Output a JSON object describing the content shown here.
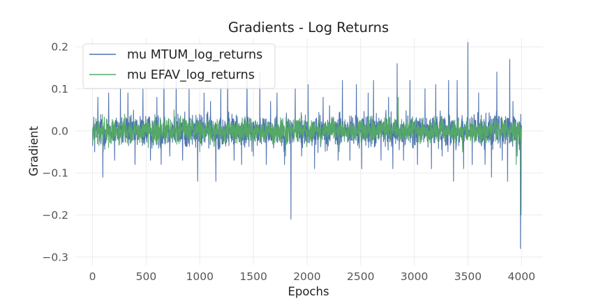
{
  "chart_data": {
    "type": "line",
    "title": "Gradients - Log Returns",
    "xlabel": "Epochs",
    "ylabel": "Gradient",
    "xlim": [
      -160,
      4200
    ],
    "ylim": [
      -0.32,
      0.22
    ],
    "xticks": [
      0,
      500,
      1000,
      1500,
      2000,
      2500,
      3000,
      3500,
      4000
    ],
    "yticks": [
      0.2,
      0.1,
      0.0,
      -0.1,
      -0.2,
      -0.3
    ],
    "ytick_labels": [
      "0.2",
      "0.1",
      "0.0",
      "−0.1",
      "−0.2",
      "−0.3"
    ],
    "grid": true,
    "legend_position": "top-left",
    "x_range": [
      0,
      4000
    ],
    "series": [
      {
        "name": "mu MTUM_log_returns",
        "color": "#4c72b0",
        "noise_amplitude": 0.035,
        "spikes": [
          [
            20,
            -0.05
          ],
          [
            50,
            0.08
          ],
          [
            95,
            -0.11
          ],
          [
            150,
            0.09
          ],
          [
            205,
            -0.07
          ],
          [
            260,
            0.1
          ],
          [
            330,
            0.09
          ],
          [
            395,
            -0.08
          ],
          [
            470,
            0.1
          ],
          [
            540,
            -0.07
          ],
          [
            600,
            0.08
          ],
          [
            640,
            -0.08
          ],
          [
            665,
            0.17
          ],
          [
            720,
            -0.06
          ],
          [
            780,
            0.12
          ],
          [
            840,
            -0.07
          ],
          [
            900,
            0.1
          ],
          [
            980,
            -0.12
          ],
          [
            1040,
            0.09
          ],
          [
            1100,
            0.07
          ],
          [
            1150,
            -0.12
          ],
          [
            1195,
            0.1
          ],
          [
            1260,
            0.14
          ],
          [
            1320,
            -0.07
          ],
          [
            1390,
            -0.08
          ],
          [
            1440,
            0.13
          ],
          [
            1500,
            -0.06
          ],
          [
            1560,
            0.14
          ],
          [
            1620,
            -0.08
          ],
          [
            1660,
            0.07
          ],
          [
            1720,
            0.09
          ],
          [
            1790,
            -0.08
          ],
          [
            1850,
            -0.21
          ],
          [
            1890,
            0.1
          ],
          [
            1950,
            -0.06
          ],
          [
            2010,
            0.11
          ],
          [
            2070,
            -0.09
          ],
          [
            2150,
            0.08
          ],
          [
            2210,
            0.06
          ],
          [
            2290,
            -0.07
          ],
          [
            2330,
            0.12
          ],
          [
            2400,
            -0.07
          ],
          [
            2460,
            0.11
          ],
          [
            2510,
            -0.09
          ],
          [
            2570,
            0.09
          ],
          [
            2620,
            0.12
          ],
          [
            2690,
            -0.07
          ],
          [
            2760,
            0.08
          ],
          [
            2800,
            -0.09
          ],
          [
            2840,
            0.16
          ],
          [
            2900,
            -0.07
          ],
          [
            2960,
            0.12
          ],
          [
            3030,
            -0.08
          ],
          [
            3100,
            0.1
          ],
          [
            3160,
            -0.09
          ],
          [
            3200,
            0.11
          ],
          [
            3260,
            -0.06
          ],
          [
            3320,
            0.12
          ],
          [
            3365,
            -0.12
          ],
          [
            3400,
            0.12
          ],
          [
            3460,
            -0.09
          ],
          [
            3500,
            0.21
          ],
          [
            3540,
            -0.08
          ],
          [
            3600,
            0.09
          ],
          [
            3660,
            -0.08
          ],
          [
            3720,
            -0.11
          ],
          [
            3770,
            0.14
          ],
          [
            3820,
            -0.07
          ],
          [
            3870,
            -0.12
          ],
          [
            3890,
            0.17
          ],
          [
            3920,
            0.07
          ],
          [
            3960,
            -0.06
          ],
          [
            3990,
            -0.28
          ]
        ]
      },
      {
        "name": "mu EFAV_log_returns",
        "color": "#55a868",
        "noise_amplitude": 0.025,
        "spikes": [
          [
            100,
            -0.05
          ],
          [
            150,
            -0.04
          ],
          [
            300,
            0.04
          ],
          [
            520,
            -0.04
          ],
          [
            760,
            0.05
          ],
          [
            1000,
            -0.05
          ],
          [
            1500,
            -0.04
          ],
          [
            1800,
            -0.06
          ],
          [
            2300,
            -0.05
          ],
          [
            2850,
            0.08
          ],
          [
            3450,
            -0.05
          ],
          [
            3950,
            -0.08
          ],
          [
            3995,
            -0.2
          ]
        ]
      }
    ]
  }
}
